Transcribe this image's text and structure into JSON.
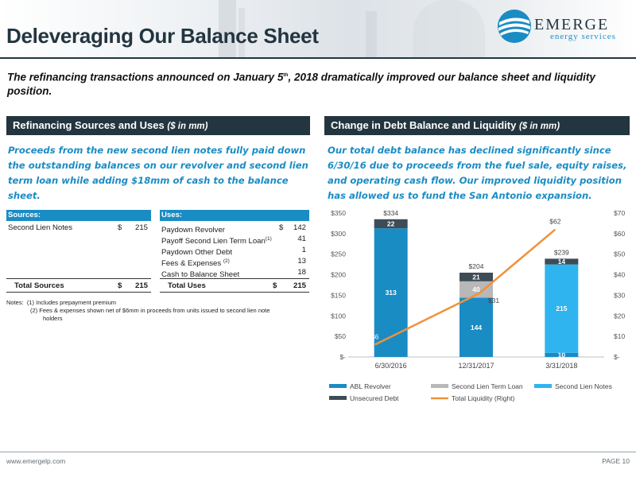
{
  "header": {
    "title": "Deleveraging Our Balance Sheet",
    "logo_word": "EMERGE",
    "logo_sub": "energy services"
  },
  "subtitle": {
    "pre": "The refinancing transactions announced on January 5",
    "sup": "th",
    "post": ", 2018 dramatically improved our balance sheet and liquidity position."
  },
  "left": {
    "heading": "Refinancing Sources and Uses",
    "heading_unit": "($ in mm)",
    "intro": "Proceeds from the new second lien notes fully paid down the outstanding balances on our revolver and second lien term loan while adding $18mm of cash to the balance sheet.",
    "sources": {
      "header": "Sources:",
      "rows": [
        {
          "label": "Second Lien Notes",
          "dollar": "$",
          "value": "215"
        }
      ],
      "total": {
        "label": "Total Sources",
        "dollar": "$",
        "value": "215"
      }
    },
    "uses": {
      "header": "Uses:",
      "rows": [
        {
          "label": "Paydown Revolver",
          "sup": "",
          "dollar": "$",
          "value": "142"
        },
        {
          "label": "Payoff Second Lien Term Loan",
          "sup": "(1)",
          "dollar": "",
          "value": "41"
        },
        {
          "label": "Paydown Other Debt",
          "sup": "",
          "dollar": "",
          "value": "1"
        },
        {
          "label": "Fees & Expenses ",
          "sup": "(2)",
          "dollar": "",
          "value": "13"
        },
        {
          "label": "Cash to Balance Sheet",
          "sup": "",
          "dollar": "",
          "value": "18"
        }
      ],
      "total": {
        "label": "Total Uses",
        "dollar": "$",
        "value": "215"
      }
    },
    "notes": {
      "label": "Notes:",
      "n1": "(1) Includes prepayment premium",
      "n2a": "(2) Fees & expenses shown net of $6mm in proceeds from units issued to second lien note",
      "n2b": "holders"
    }
  },
  "right": {
    "heading": "Change in Debt Balance and Liquidity",
    "heading_unit": "($ in mm)",
    "intro": "Our total debt balance has declined significantly since 6/30/16 due to proceeds from the fuel sale, equity raises, and operating cash flow. Our improved liquidity position has allowed us to fund the San Antonio expansion."
  },
  "chart_data": {
    "type": "bar",
    "stacked": true,
    "categories": [
      "6/30/2016",
      "12/31/2017",
      "3/31/2018"
    ],
    "series": [
      {
        "name": "ABL Revolver",
        "color": "#1a8cc4",
        "values": [
          313,
          144,
          0
        ],
        "labels": [
          "313",
          "144",
          ""
        ]
      },
      {
        "name": "Second Lien Term Loan",
        "color": "#b8b8b8",
        "values": [
          0,
          40,
          0
        ],
        "labels": [
          "",
          "40",
          ""
        ]
      },
      {
        "name": "Second Lien Notes",
        "color": "#2fb4f0",
        "values": [
          0,
          0,
          215
        ],
        "labels": [
          "",
          "",
          "215"
        ]
      },
      {
        "name": "Unsecured Debt",
        "color": "#3d4c56",
        "values": [
          22,
          21,
          14
        ],
        "labels": [
          "22",
          "21",
          "14"
        ]
      },
      {
        "name": "Other",
        "color": "#1a8cc4",
        "values": [
          0,
          0,
          10
        ],
        "labels": [
          "",
          "",
          "10"
        ]
      }
    ],
    "totals": [
      "$334",
      "$204",
      "$239"
    ],
    "line": {
      "name": "Total Liquidity (Right)",
      "color": "#f0923a",
      "values": [
        6,
        31,
        62
      ],
      "labels": [
        "$6",
        "$31",
        "$62"
      ]
    },
    "ylim": [
      0,
      350
    ],
    "yticks": [
      "$-",
      "$50",
      "$100",
      "$150",
      "$200",
      "$250",
      "$300",
      "$350"
    ],
    "y2lim": [
      0,
      70
    ],
    "y2ticks": [
      "$-",
      "$10",
      "$20",
      "$30",
      "$40",
      "$50",
      "$60",
      "$70"
    ],
    "legend": [
      "ABL Revolver",
      "Second Lien Term Loan",
      "Second Lien Notes",
      "Unsecured Debt",
      "Total Liquidity (Right)"
    ],
    "legend_position": "bottom"
  },
  "footer": {
    "url": "www.emergelp.com",
    "page": "PAGE 10"
  }
}
